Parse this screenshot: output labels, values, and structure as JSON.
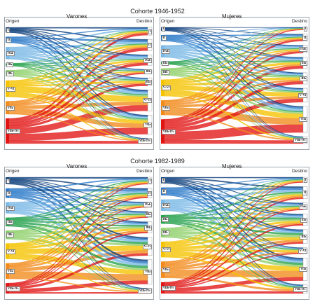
{
  "colors": {
    "I": "#0b3d7a",
    "II": "#2a78c8",
    "IVab": "#7ab8e6",
    "IIIa": "#22a04a",
    "IIIb": "#8fd06c",
    "VVI": "#f5c300",
    "VIIa": "#f28a1c",
    "VIIbIVc": "#e11414",
    "IVab_dest": "#f2b200",
    "IIIa_dest": "#f6a623"
  },
  "cohorts": [
    {
      "title": "Cohorte 1946-1952",
      "panels": [
        {
          "title": "Varones",
          "origin_label": "Origen",
          "dest_label": "Destino",
          "origins": [
            {
              "label": "I",
              "share": 0.06
            },
            {
              "label": "II",
              "share": 0.07
            },
            {
              "label": "IVab",
              "share": 0.14
            },
            {
              "label": "IIIa",
              "share": 0.03
            },
            {
              "label": "IIIb",
              "share": 0.07
            },
            {
              "label": "V+VI",
              "share": 0.19
            },
            {
              "label": "VIIa",
              "share": 0.15
            },
            {
              "label": "VIIb+IVc",
              "share": 0.29
            }
          ],
          "destinations": [
            {
              "label": "I",
              "share": 0.09
            },
            {
              "label": "II",
              "share": 0.13
            },
            {
              "label": "IVab",
              "share": 0.12
            },
            {
              "label": "IIIb",
              "share": 0.05
            },
            {
              "label": "IIIa",
              "share": 0.09
            },
            {
              "label": "V+VI",
              "share": 0.24
            },
            {
              "label": "VIIa",
              "share": 0.22
            },
            {
              "label": "VIIb+IVc",
              "share": 0.06
            }
          ]
        },
        {
          "title": "Mujeres",
          "origin_label": "Origen",
          "dest_label": "Destino",
          "origins": [
            {
              "label": "I",
              "share": 0.04
            },
            {
              "label": "II",
              "share": 0.07
            },
            {
              "label": "IVab",
              "share": 0.14
            },
            {
              "label": "IIIa",
              "share": 0.03
            },
            {
              "label": "IIIb",
              "share": 0.08
            },
            {
              "label": "V+VI",
              "share": 0.19
            },
            {
              "label": "VIIa",
              "share": 0.17
            },
            {
              "label": "VIIb+IVc",
              "share": 0.28
            }
          ],
          "destinations": [
            {
              "label": "I",
              "share": 0.03
            },
            {
              "label": "II",
              "share": 0.08
            },
            {
              "label": "IVab",
              "share": 0.09
            },
            {
              "label": "IIIa",
              "share": 0.13
            },
            {
              "label": "IIIb",
              "share": 0.13
            },
            {
              "label": "V+VI",
              "share": 0.16
            },
            {
              "label": "VIIa",
              "share": 0.3
            },
            {
              "label": "VIIb+IVc",
              "share": 0.08
            }
          ]
        }
      ]
    },
    {
      "title": "Cohorte 1982-1989",
      "panels": [
        {
          "title": "Varones",
          "origin_label": "Origen",
          "dest_label": "Destino",
          "origins": [
            {
              "label": "I",
              "share": 0.08
            },
            {
              "label": "II",
              "share": 0.11
            },
            {
              "label": "IVab",
              "share": 0.13
            },
            {
              "label": "IIIa",
              "share": 0.1
            },
            {
              "label": "IIIb",
              "share": 0.1
            },
            {
              "label": "V+VI",
              "share": 0.18
            },
            {
              "label": "VIIa",
              "share": 0.18
            },
            {
              "label": "VIIb+IVc",
              "share": 0.12
            }
          ],
          "destinations": [
            {
              "label": "I",
              "share": 0.08
            },
            {
              "label": "II",
              "share": 0.11
            },
            {
              "label": "IVab",
              "share": 0.06
            },
            {
              "label": "IIIa",
              "share": 0.07
            },
            {
              "label": "IIIb",
              "share": 0.13
            },
            {
              "label": "V+VI",
              "share": 0.21
            },
            {
              "label": "VIIa",
              "share": 0.28
            },
            {
              "label": "VIIb+IVc",
              "share": 0.06
            }
          ]
        },
        {
          "title": "Mujeres",
          "origin_label": "Origen",
          "dest_label": "Destino",
          "origins": [
            {
              "label": "I",
              "share": 0.07
            },
            {
              "label": "II",
              "share": 0.09
            },
            {
              "label": "IVab",
              "share": 0.13
            },
            {
              "label": "IIIa",
              "share": 0.1
            },
            {
              "label": "IIIb",
              "share": 0.11
            },
            {
              "label": "V+VI",
              "share": 0.18
            },
            {
              "label": "VIIa",
              "share": 0.19
            },
            {
              "label": "VIIb+IVc",
              "share": 0.13
            }
          ],
          "destinations": [
            {
              "label": "I",
              "share": 0.06
            },
            {
              "label": "II",
              "share": 0.14
            },
            {
              "label": "IVab",
              "share": 0.08
            },
            {
              "label": "IIIa",
              "share": 0.13
            },
            {
              "label": "IIIb",
              "share": 0.16
            },
            {
              "label": "V+VI",
              "share": 0.07
            },
            {
              "label": "VIIa",
              "share": 0.26
            },
            {
              "label": "VIIb+IVc",
              "share": 0.1
            }
          ]
        }
      ]
    }
  ]
}
